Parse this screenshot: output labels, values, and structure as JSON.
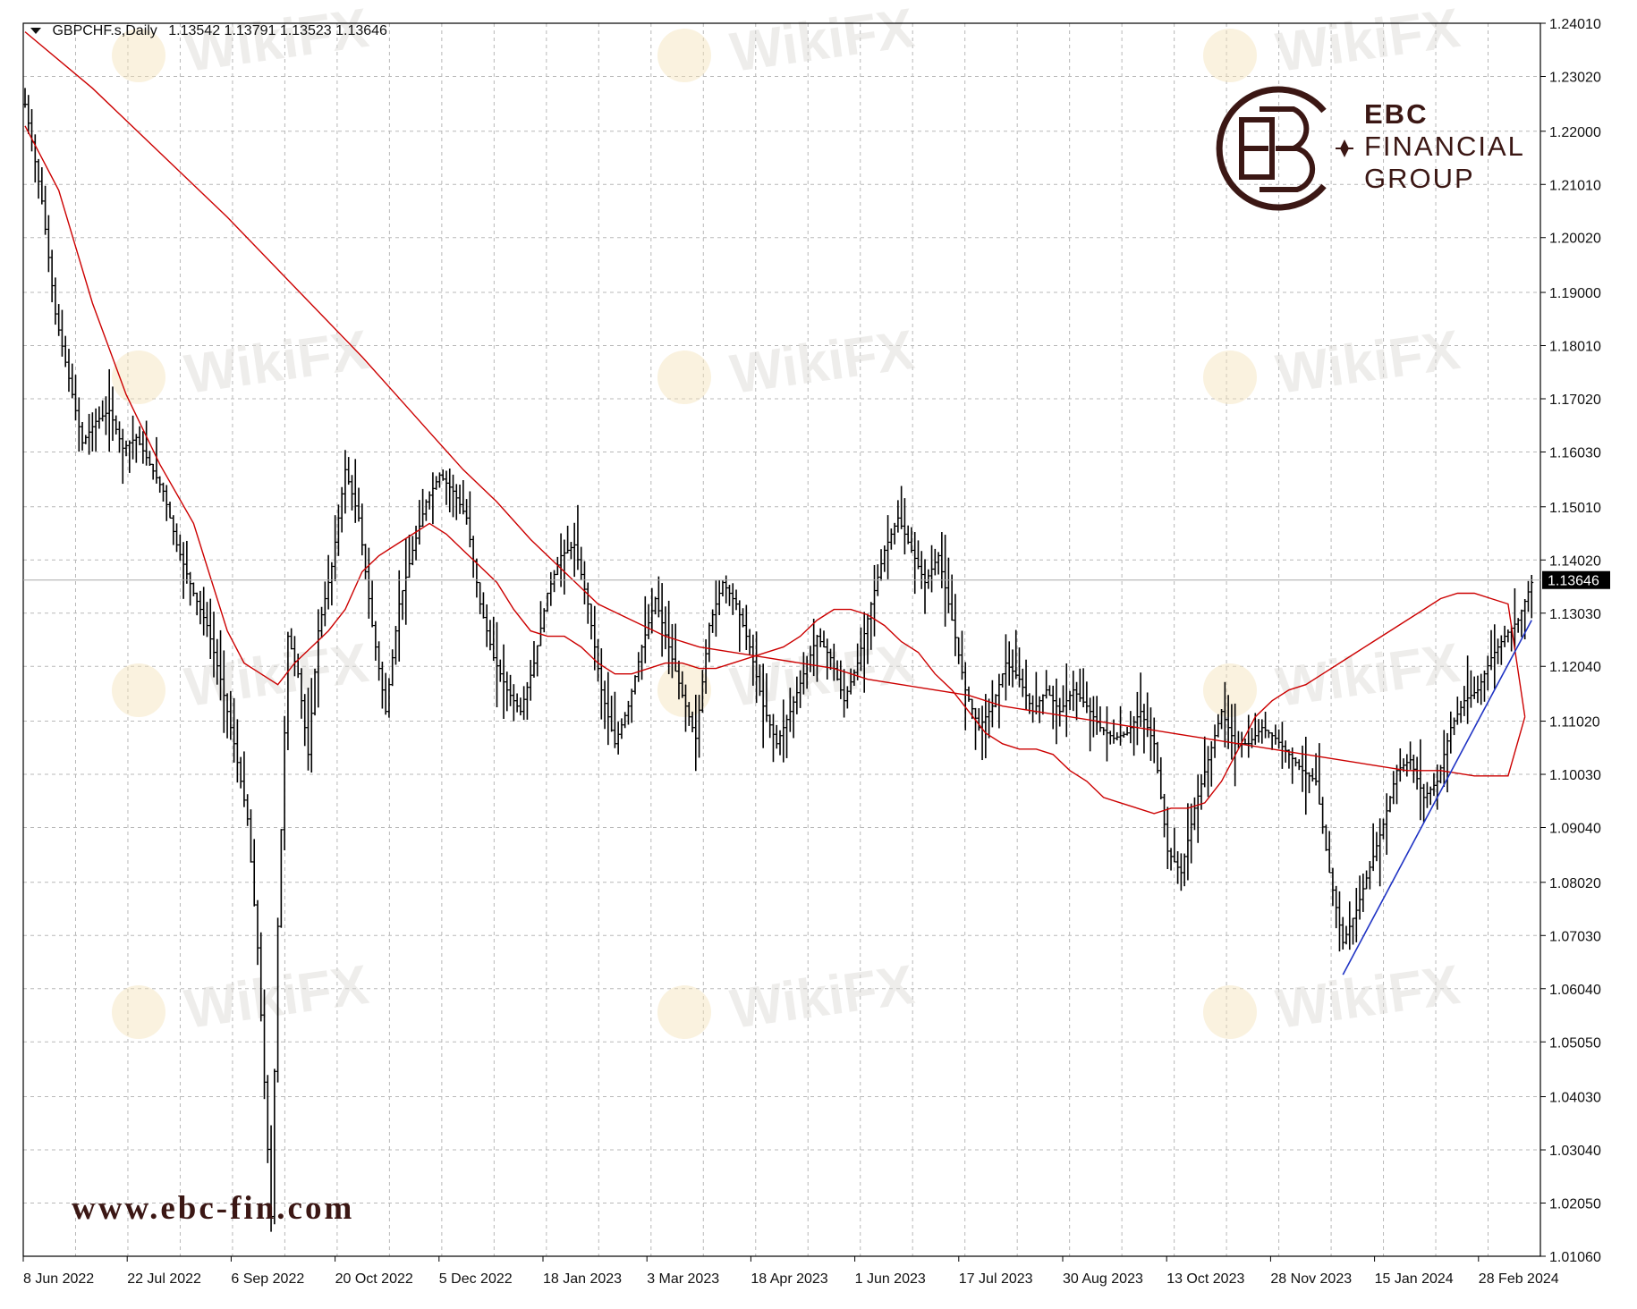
{
  "header": {
    "symbol": "GBPCHF.s,Daily",
    "ohlc": "1.13542 1.13791 1.13523 1.13646"
  },
  "logo": {
    "line1": "EBC",
    "line2": "FINANCIAL",
    "line3": "GROUP"
  },
  "website": "www.ebc-fin.com",
  "watermark": "WikiFX",
  "colors": {
    "price_bars": "#000000",
    "ma_fast": "#cc0000",
    "ma_slow": "#cc0000",
    "trendline": "#1f33c4",
    "grid": "#b8b8b8",
    "current_price_label_bg": "#000000",
    "brand": "#3b1714"
  },
  "chart_data": {
    "type": "ohlc",
    "title": "GBPCHF.s,Daily",
    "current_price": 1.13646,
    "ylim": [
      1.0106,
      1.2401
    ],
    "y_ticks": [
      "1.24010",
      "1.23020",
      "1.22000",
      "1.21010",
      "1.20020",
      "1.19000",
      "1.18010",
      "1.17020",
      "1.16030",
      "1.15010",
      "1.14020",
      "1.13030",
      "1.12040",
      "1.11020",
      "1.10030",
      "1.09040",
      "1.08020",
      "1.07030",
      "1.06040",
      "1.05050",
      "1.04030",
      "1.03040",
      "1.02050",
      "1.01060"
    ],
    "x_ticks": [
      "8 Jun 2022",
      "22 Jul 2022",
      "6 Sep 2022",
      "20 Oct 2022",
      "5 Dec 2022",
      "18 Jan 2023",
      "3 Mar 2023",
      "18 Apr 2023",
      "1 Jun 2023",
      "17 Jul 2023",
      "30 Aug 2023",
      "13 Oct 2023",
      "28 Nov 2023",
      "15 Jan 2024",
      "28 Feb 2024"
    ],
    "grid": true,
    "close_path": [
      [
        0,
        1.225
      ],
      [
        2,
        1.218
      ],
      [
        5,
        1.207
      ],
      [
        9,
        1.186
      ],
      [
        13,
        1.174
      ],
      [
        17,
        1.162
      ],
      [
        21,
        1.166
      ],
      [
        25,
        1.168
      ],
      [
        29,
        1.161
      ],
      [
        33,
        1.163
      ],
      [
        37,
        1.158
      ],
      [
        41,
        1.153
      ],
      [
        45,
        1.143
      ],
      [
        50,
        1.134
      ],
      [
        54,
        1.128
      ],
      [
        58,
        1.118
      ],
      [
        62,
        1.106
      ],
      [
        66,
        1.092
      ],
      [
        69,
        1.068
      ],
      [
        71,
        1.043
      ],
      [
        73,
        1.018
      ],
      [
        75,
        1.072
      ],
      [
        78,
        1.126
      ],
      [
        81,
        1.119
      ],
      [
        84,
        1.104
      ],
      [
        87,
        1.127
      ],
      [
        91,
        1.139
      ],
      [
        95,
        1.157
      ],
      [
        99,
        1.148
      ],
      [
        103,
        1.128
      ],
      [
        107,
        1.112
      ],
      [
        111,
        1.132
      ],
      [
        115,
        1.142
      ],
      [
        119,
        1.151
      ],
      [
        123,
        1.156
      ],
      [
        127,
        1.153
      ],
      [
        131,
        1.148
      ],
      [
        135,
        1.132
      ],
      [
        139,
        1.122
      ],
      [
        143,
        1.116
      ],
      [
        147,
        1.112
      ],
      [
        151,
        1.121
      ],
      [
        155,
        1.134
      ],
      [
        159,
        1.141
      ],
      [
        163,
        1.143
      ],
      [
        167,
        1.132
      ],
      [
        171,
        1.116
      ],
      [
        175,
        1.106
      ],
      [
        179,
        1.113
      ],
      [
        183,
        1.124
      ],
      [
        187,
        1.133
      ],
      [
        191,
        1.124
      ],
      [
        195,
        1.115
      ],
      [
        199,
        1.107
      ],
      [
        203,
        1.128
      ],
      [
        207,
        1.136
      ],
      [
        211,
        1.132
      ],
      [
        215,
        1.124
      ],
      [
        219,
        1.113
      ],
      [
        223,
        1.106
      ],
      [
        227,
        1.112
      ],
      [
        231,
        1.119
      ],
      [
        235,
        1.126
      ],
      [
        239,
        1.122
      ],
      [
        243,
        1.114
      ],
      [
        247,
        1.121
      ],
      [
        251,
        1.132
      ],
      [
        255,
        1.142
      ],
      [
        259,
        1.148
      ],
      [
        263,
        1.142
      ],
      [
        267,
        1.136
      ],
      [
        271,
        1.141
      ],
      [
        275,
        1.129
      ],
      [
        279,
        1.116
      ],
      [
        283,
        1.109
      ],
      [
        287,
        1.113
      ],
      [
        291,
        1.121
      ],
      [
        295,
        1.118
      ],
      [
        299,
        1.112
      ],
      [
        303,
        1.116
      ],
      [
        307,
        1.112
      ],
      [
        311,
        1.116
      ],
      [
        315,
        1.113
      ],
      [
        319,
        1.109
      ],
      [
        323,
        1.107
      ],
      [
        327,
        1.108
      ],
      [
        331,
        1.112
      ],
      [
        335,
        1.106
      ],
      [
        339,
        1.086
      ],
      [
        343,
        1.082
      ],
      [
        347,
        1.094
      ],
      [
        351,
        1.103
      ],
      [
        355,
        1.112
      ],
      [
        359,
        1.106
      ],
      [
        363,
        1.106
      ],
      [
        367,
        1.109
      ],
      [
        371,
        1.107
      ],
      [
        375,
        1.104
      ],
      [
        379,
        1.101
      ],
      [
        383,
        1.099
      ],
      [
        387,
        1.082
      ],
      [
        391,
        1.069
      ],
      [
        395,
        1.075
      ],
      [
        399,
        1.083
      ],
      [
        403,
        1.091
      ],
      [
        407,
        1.101
      ],
      [
        411,
        1.103
      ],
      [
        415,
        1.096
      ],
      [
        419,
        1.099
      ],
      [
        423,
        1.109
      ],
      [
        427,
        1.114
      ],
      [
        431,
        1.116
      ],
      [
        435,
        1.122
      ],
      [
        439,
        1.126
      ],
      [
        443,
        1.129
      ],
      [
        447,
        1.136
      ]
    ],
    "series": [
      {
        "values": [
          [
            0,
            1.221
          ],
          [
            10,
            1.209
          ],
          [
            20,
            1.188
          ],
          [
            30,
            1.171
          ],
          [
            40,
            1.158
          ],
          [
            50,
            1.147
          ],
          [
            55,
            1.137
          ],
          [
            60,
            1.127
          ],
          [
            65,
            1.121
          ],
          [
            70,
            1.119
          ],
          [
            75,
            1.117
          ],
          [
            80,
            1.121
          ],
          [
            85,
            1.124
          ],
          [
            90,
            1.127
          ],
          [
            95,
            1.131
          ],
          [
            100,
            1.138
          ],
          [
            105,
            1.141
          ],
          [
            110,
            1.143
          ],
          [
            115,
            1.145
          ],
          [
            120,
            1.147
          ],
          [
            125,
            1.145
          ],
          [
            130,
            1.142
          ],
          [
            135,
            1.139
          ],
          [
            140,
            1.136
          ],
          [
            145,
            1.131
          ],
          [
            150,
            1.127
          ],
          [
            155,
            1.126
          ],
          [
            160,
            1.126
          ],
          [
            165,
            1.124
          ],
          [
            170,
            1.121
          ],
          [
            175,
            1.119
          ],
          [
            180,
            1.119
          ],
          [
            185,
            1.12
          ],
          [
            190,
            1.121
          ],
          [
            195,
            1.121
          ],
          [
            200,
            1.12
          ],
          [
            205,
            1.12
          ],
          [
            210,
            1.121
          ],
          [
            215,
            1.122
          ],
          [
            220,
            1.123
          ],
          [
            225,
            1.124
          ],
          [
            230,
            1.126
          ],
          [
            235,
            1.129
          ],
          [
            240,
            1.131
          ],
          [
            245,
            1.131
          ],
          [
            250,
            1.13
          ],
          [
            255,
            1.128
          ],
          [
            260,
            1.125
          ],
          [
            265,
            1.123
          ],
          [
            270,
            1.119
          ],
          [
            275,
            1.116
          ],
          [
            280,
            1.112
          ],
          [
            285,
            1.108
          ],
          [
            290,
            1.106
          ],
          [
            295,
            1.105
          ],
          [
            300,
            1.105
          ],
          [
            305,
            1.104
          ],
          [
            310,
            1.101
          ],
          [
            315,
            1.099
          ],
          [
            320,
            1.096
          ],
          [
            325,
            1.095
          ],
          [
            330,
            1.094
          ],
          [
            335,
            1.093
          ],
          [
            340,
            1.094
          ],
          [
            345,
            1.094
          ],
          [
            350,
            1.095
          ],
          [
            355,
            1.099
          ],
          [
            360,
            1.105
          ],
          [
            365,
            1.111
          ],
          [
            370,
            1.114
          ],
          [
            375,
            1.116
          ],
          [
            380,
            1.117
          ],
          [
            385,
            1.119
          ],
          [
            390,
            1.121
          ],
          [
            395,
            1.123
          ],
          [
            400,
            1.125
          ],
          [
            405,
            1.127
          ],
          [
            410,
            1.129
          ],
          [
            415,
            1.131
          ],
          [
            420,
            1.133
          ],
          [
            425,
            1.134
          ],
          [
            430,
            1.134
          ],
          [
            435,
            1.133
          ],
          [
            440,
            1.132
          ],
          [
            445,
            1.111
          ]
        ]
      },
      {
        "values": [
          [
            0,
            1.2385
          ],
          [
            20,
            1.228
          ],
          [
            40,
            1.216
          ],
          [
            60,
            1.204
          ],
          [
            80,
            1.191
          ],
          [
            100,
            1.178
          ],
          [
            110,
            1.171
          ],
          [
            120,
            1.164
          ],
          [
            130,
            1.157
          ],
          [
            140,
            1.151
          ],
          [
            150,
            1.144
          ],
          [
            160,
            1.138
          ],
          [
            170,
            1.132
          ],
          [
            180,
            1.129
          ],
          [
            190,
            1.126
          ],
          [
            200,
            1.124
          ],
          [
            210,
            1.123
          ],
          [
            220,
            1.122
          ],
          [
            230,
            1.121
          ],
          [
            240,
            1.12
          ],
          [
            250,
            1.118
          ],
          [
            260,
            1.117
          ],
          [
            270,
            1.116
          ],
          [
            280,
            1.115
          ],
          [
            290,
            1.113
          ],
          [
            300,
            1.112
          ],
          [
            310,
            1.111
          ],
          [
            320,
            1.11
          ],
          [
            330,
            1.109
          ],
          [
            340,
            1.108
          ],
          [
            350,
            1.107
          ],
          [
            360,
            1.106
          ],
          [
            370,
            1.105
          ],
          [
            380,
            1.104
          ],
          [
            390,
            1.103
          ],
          [
            400,
            1.102
          ],
          [
            410,
            1.101
          ],
          [
            420,
            1.101
          ],
          [
            430,
            1.1
          ],
          [
            440,
            1.1
          ],
          [
            445,
            1.111
          ]
        ]
      }
    ],
    "trendline": [
      [
        391,
        1.063
      ],
      [
        447,
        1.129
      ]
    ]
  }
}
